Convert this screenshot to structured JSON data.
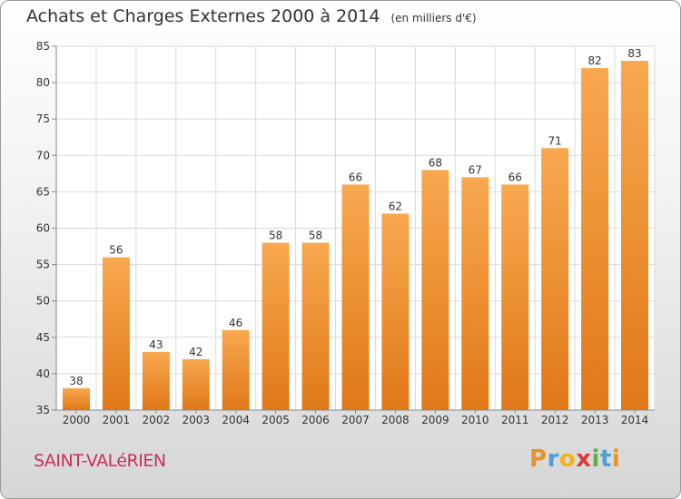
{
  "chart_data": {
    "type": "bar",
    "title": "Achats et Charges Externes 2000 à 2014",
    "unit": "(en milliers d'€)",
    "categories": [
      "2000",
      "2001",
      "2002",
      "2003",
      "2004",
      "2005",
      "2006",
      "2007",
      "2008",
      "2009",
      "2010",
      "2011",
      "2012",
      "2013",
      "2014"
    ],
    "values": [
      38,
      56,
      43,
      42,
      46,
      58,
      58,
      66,
      62,
      68,
      67,
      66,
      71,
      82,
      83
    ],
    "ylim": [
      35,
      85
    ],
    "yticks": [
      35,
      40,
      45,
      50,
      55,
      60,
      65,
      70,
      75,
      80,
      85
    ],
    "grid": true,
    "bar_color_light": "#f8a850",
    "bar_color_dark": "#e07818"
  },
  "commune": "SAINT-VALéRIEN",
  "logo": {
    "letters": [
      "P",
      "r",
      "o",
      "x",
      "i",
      "t",
      "i"
    ],
    "colors": [
      "#e8922a",
      "#4f9fd6",
      "#f2b31b",
      "#d63a3a",
      "#5ab04a",
      "#4f9fd6",
      "#e8922a"
    ]
  }
}
